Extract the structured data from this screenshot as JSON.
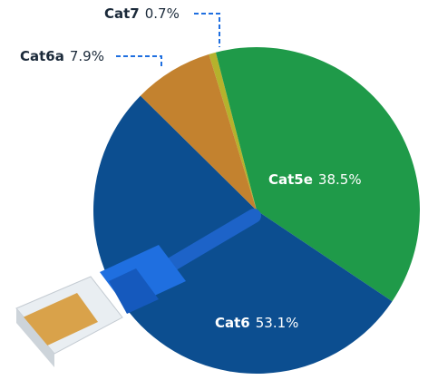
{
  "chart_data": {
    "type": "pie",
    "categories": [
      "Cat7",
      "Cat5e",
      "Cat6",
      "Cat6a"
    ],
    "values": [
      0.7,
      38.5,
      53.1,
      7.9
    ],
    "value_labels": [
      "0.7%",
      "38.5%",
      "53.1%",
      "7.9%"
    ],
    "colors": [
      "#b5b22c",
      "#1f9a49",
      "#0c4e90",
      "#c3822f"
    ]
  }
}
